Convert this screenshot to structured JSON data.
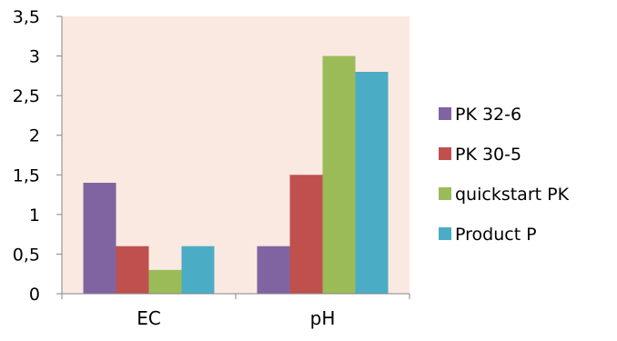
{
  "chart_data": {
    "type": "bar",
    "categories": [
      "EC",
      "pH"
    ],
    "series": [
      {
        "name": "PK 32-6",
        "values": [
          1.4,
          0.6
        ],
        "color": "#8064a2"
      },
      {
        "name": "PK 30-5",
        "values": [
          0.6,
          1.5
        ],
        "color": "#c0504d"
      },
      {
        "name": "quickstart PK",
        "values": [
          0.3,
          3.0
        ],
        "color": "#9bbb59"
      },
      {
        "name": "Product P",
        "values": [
          0.6,
          2.8
        ],
        "color": "#4bacc6"
      }
    ],
    "ylim": [
      0,
      3.5
    ],
    "yticks": [
      "0",
      "0,5",
      "1",
      "1,5",
      "2",
      "2,5",
      "3",
      "3,5"
    ],
    "plot_background": "#f9e9e1",
    "grid": false,
    "legend_position": "right"
  }
}
